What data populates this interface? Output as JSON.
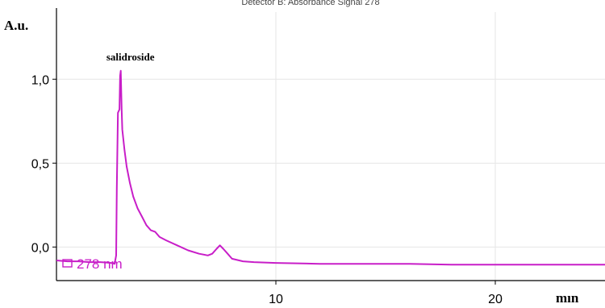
{
  "chart_data": {
    "type": "line",
    "title": "",
    "top_caption": "Detector B: Absorbance Signal 278",
    "ylabel": "A.u.",
    "xlabel": "mın",
    "xlim": [
      0,
      25
    ],
    "ylim": [
      -0.2,
      1.4
    ],
    "x_ticks": [
      {
        "value": 10,
        "label": "10"
      },
      {
        "value": 20,
        "label": "20"
      }
    ],
    "y_ticks": [
      {
        "value": 0.0,
        "label": "0,0"
      },
      {
        "value": 0.5,
        "label": "0,5"
      },
      {
        "value": 1.0,
        "label": "1,0"
      }
    ],
    "grid": true,
    "colors": {
      "signal": "#c81ec8",
      "axis": "#000000",
      "grid": "#e6e6e6"
    },
    "peak_annotation": {
      "x": 2.93,
      "y": 1.05,
      "text": "salidroside"
    },
    "legend_entry": "278 nm",
    "series": [
      {
        "name": "278 nm",
        "points": [
          [
            0.0,
            -0.08
          ],
          [
            0.5,
            -0.085
          ],
          [
            1.0,
            -0.085
          ],
          [
            1.5,
            -0.09
          ],
          [
            2.0,
            -0.09
          ],
          [
            2.5,
            -0.095
          ],
          [
            2.65,
            -0.1
          ],
          [
            2.72,
            -0.05
          ],
          [
            2.75,
            0.35
          ],
          [
            2.8,
            0.8
          ],
          [
            2.87,
            0.82
          ],
          [
            2.9,
            1.02
          ],
          [
            2.93,
            1.05
          ],
          [
            2.97,
            0.82
          ],
          [
            3.0,
            0.7
          ],
          [
            3.1,
            0.58
          ],
          [
            3.2,
            0.48
          ],
          [
            3.35,
            0.38
          ],
          [
            3.5,
            0.3
          ],
          [
            3.7,
            0.23
          ],
          [
            3.9,
            0.18
          ],
          [
            4.1,
            0.13
          ],
          [
            4.3,
            0.1
          ],
          [
            4.5,
            0.09
          ],
          [
            4.7,
            0.06
          ],
          [
            5.0,
            0.04
          ],
          [
            5.5,
            0.01
          ],
          [
            6.0,
            -0.02
          ],
          [
            6.5,
            -0.04
          ],
          [
            6.9,
            -0.05
          ],
          [
            7.1,
            -0.04
          ],
          [
            7.3,
            -0.01
          ],
          [
            7.45,
            0.01
          ],
          [
            7.6,
            -0.01
          ],
          [
            7.8,
            -0.04
          ],
          [
            8.0,
            -0.07
          ],
          [
            8.5,
            -0.085
          ],
          [
            9.0,
            -0.09
          ],
          [
            10.0,
            -0.095
          ],
          [
            12.0,
            -0.1
          ],
          [
            14.0,
            -0.1
          ],
          [
            16.0,
            -0.1
          ],
          [
            18.0,
            -0.105
          ],
          [
            20.0,
            -0.105
          ],
          [
            22.0,
            -0.105
          ],
          [
            24.0,
            -0.105
          ],
          [
            25.0,
            -0.105
          ]
        ]
      }
    ]
  }
}
